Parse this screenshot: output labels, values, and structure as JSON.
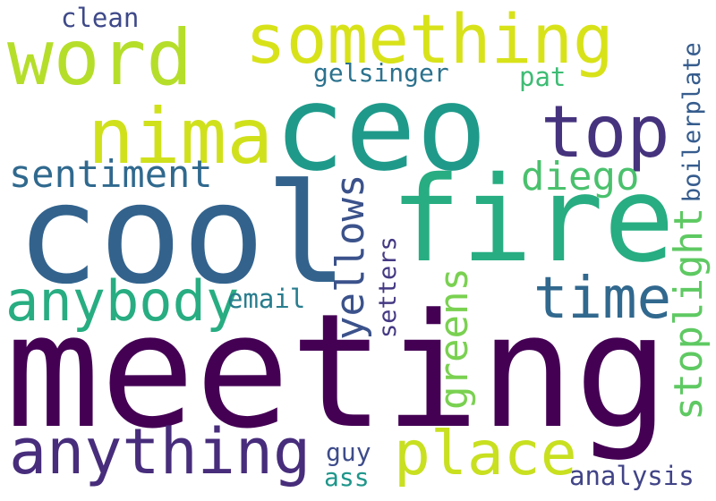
{
  "words": [
    {
      "key": "meeting",
      "text": "meeting",
      "color": "#440154"
    },
    {
      "key": "cool",
      "text": "cool",
      "color": "#33638d"
    },
    {
      "key": "ceo",
      "text": "ceo",
      "color": "#1f9a8a"
    },
    {
      "key": "fire",
      "text": "fire",
      "color": "#27ad81"
    },
    {
      "key": "something",
      "text": "something",
      "color": "#d8e219"
    },
    {
      "key": "word",
      "text": "word",
      "color": "#b5de2b"
    },
    {
      "key": "nima",
      "text": "nima",
      "color": "#d0e11c"
    },
    {
      "key": "top",
      "text": "top",
      "color": "#46337e"
    },
    {
      "key": "time",
      "text": "time",
      "color": "#31688e"
    },
    {
      "key": "anything",
      "text": "anything",
      "color": "#472d7b"
    },
    {
      "key": "place",
      "text": "place",
      "color": "#c8e020"
    },
    {
      "key": "anybody",
      "text": "anybody",
      "color": "#27ad81"
    },
    {
      "key": "sentiment",
      "text": "sentiment",
      "color": "#30698e"
    },
    {
      "key": "yellows",
      "text": "yellows",
      "color": "#3b528b"
    },
    {
      "key": "greens",
      "text": "greens",
      "color": "#7ad151"
    },
    {
      "key": "stoplight",
      "text": "stoplight",
      "color": "#5ec962"
    },
    {
      "key": "diego",
      "text": "diego",
      "color": "#4ac16d"
    },
    {
      "key": "boilerplate",
      "text": "boilerplate",
      "color": "#365c8d"
    },
    {
      "key": "clean",
      "text": "clean",
      "color": "#3e4989"
    },
    {
      "key": "gelsinger",
      "text": "gelsinger",
      "color": "#2c728e"
    },
    {
      "key": "pat",
      "text": "pat",
      "color": "#3dbc74"
    },
    {
      "key": "setters",
      "text": "setters",
      "color": "#443983"
    },
    {
      "key": "email",
      "text": "email",
      "color": "#287d8e"
    },
    {
      "key": "guy",
      "text": "guy",
      "color": "#3e4c8a"
    },
    {
      "key": "ass",
      "text": "ass",
      "color": "#1f968b"
    },
    {
      "key": "analysis",
      "text": "analysis",
      "color": "#414487"
    }
  ]
}
